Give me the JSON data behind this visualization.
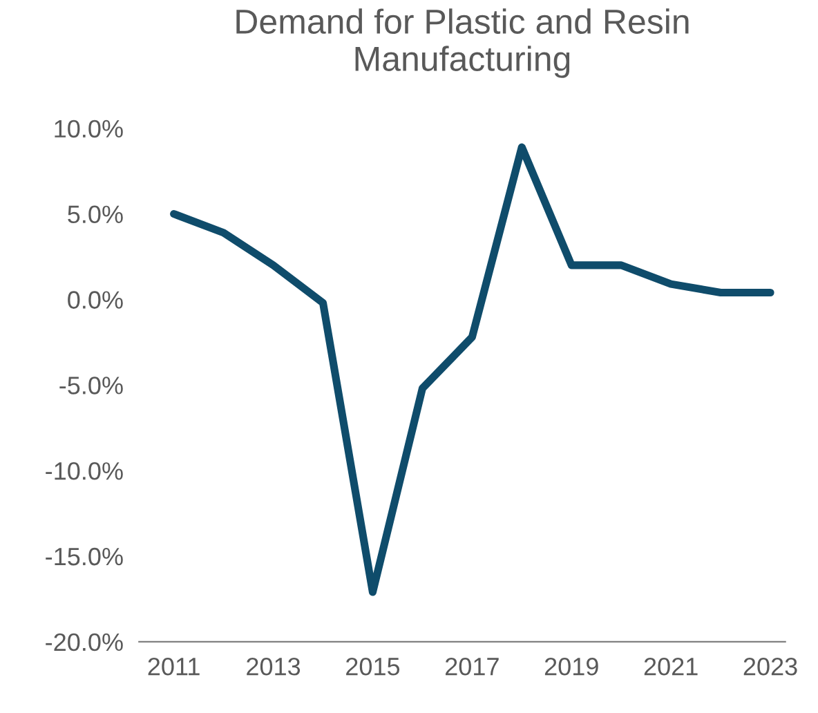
{
  "chart_data": {
    "type": "line",
    "title": "Demand for Plastic and Resin\nManufacturing",
    "x": [
      2011,
      2012,
      2013,
      2014,
      2015,
      2016,
      2017,
      2018,
      2019,
      2020,
      2021,
      2022,
      2023
    ],
    "series": [
      {
        "color": "#0f4c6b",
        "values": [
          5.0,
          3.9,
          2.0,
          -0.2,
          -17.1,
          -5.2,
          -2.2,
          8.9,
          2.0,
          2.0,
          0.9,
          0.4,
          0.4
        ]
      }
    ],
    "xlim": [
      2010.3,
      2023.3
    ],
    "xticks": [
      2011,
      2013,
      2015,
      2017,
      2019,
      2021,
      2023
    ],
    "ylim": [
      -20,
      10
    ],
    "yticks": [
      {
        "value": -20,
        "label": "-20.0%"
      },
      {
        "value": -15,
        "label": "-15.0%"
      },
      {
        "value": -10,
        "label": "-10.0%"
      },
      {
        "value": -5,
        "label": "-5.0%"
      },
      {
        "value": 0,
        "label": "0.0%"
      },
      {
        "value": 5,
        "label": "5.0%"
      },
      {
        "value": 10,
        "label": "10.0%"
      }
    ],
    "grid": false,
    "legend": false,
    "marker": "none",
    "line_style": "solid"
  }
}
